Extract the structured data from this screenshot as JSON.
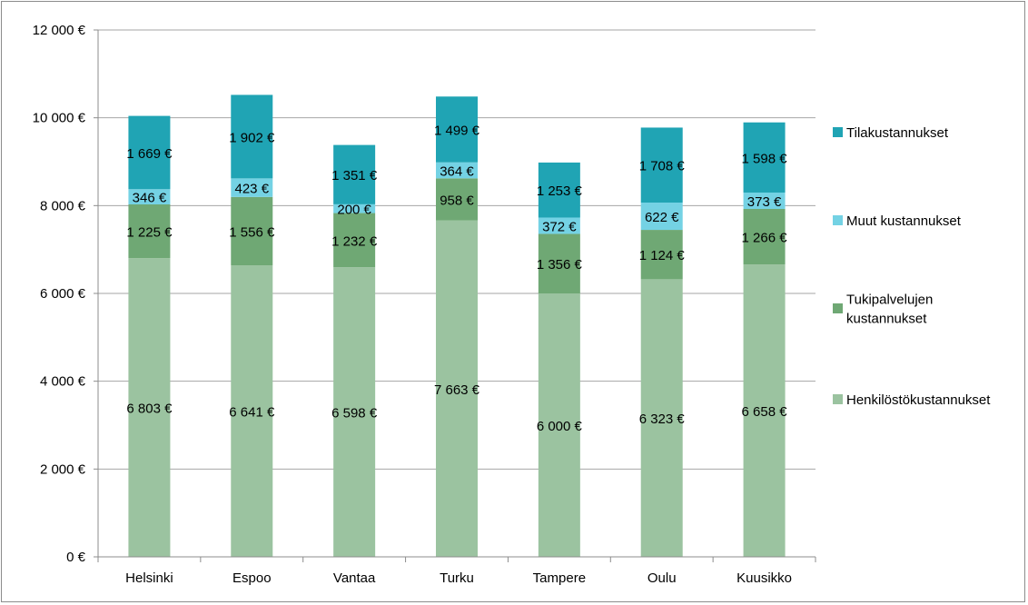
{
  "chart_data": {
    "type": "bar",
    "stacked": true,
    "categories": [
      "Helsinki",
      "Espoo",
      "Vantaa",
      "Turku",
      "Tampere",
      "Oulu",
      "Kuusikko"
    ],
    "series": [
      {
        "name": "Henkilöstökustannukset",
        "color": "#9bc3a0",
        "values": [
          6803,
          6641,
          6598,
          7663,
          6000,
          6323,
          6658
        ],
        "labels": [
          "6 803 €",
          "6 641 €",
          "6 598 €",
          "7 663 €",
          "6 000 €",
          "6 323 €",
          "6 658 €"
        ]
      },
      {
        "name": "Tukipalvelujen kustannukset",
        "color": "#6fa874",
        "values": [
          1225,
          1556,
          1232,
          958,
          1356,
          1124,
          1266
        ],
        "labels": [
          "1 225 €",
          "1 556 €",
          "1 232 €",
          "958 €",
          "1 356 €",
          "1 124 €",
          "1 266 €"
        ]
      },
      {
        "name": "Muut kustannukset",
        "color": "#74d2e4",
        "values": [
          346,
          423,
          200,
          364,
          372,
          622,
          373
        ],
        "labels": [
          "346 €",
          "423 €",
          "200 €",
          "364 €",
          "372 €",
          "622 €",
          "373 €"
        ]
      },
      {
        "name": "Tilakustannukset",
        "color": "#20a4b4",
        "values": [
          1669,
          1902,
          1351,
          1499,
          1253,
          1708,
          1598
        ],
        "labels": [
          "1 669 €",
          "1 902 €",
          "1 351 €",
          "1 499 €",
          "1 253 €",
          "1 708 €",
          "1 598 €"
        ]
      }
    ],
    "ylim": [
      0,
      12000
    ],
    "yticks": [
      0,
      2000,
      4000,
      6000,
      8000,
      10000,
      12000
    ],
    "ytick_labels": [
      "0 €",
      "2 000 €",
      "4 000 €",
      "6 000 €",
      "8 000 €",
      "10 000 €",
      "12 000 €"
    ],
    "grid": true,
    "legend_position": "right",
    "legend_order": [
      "Tilakustannukset",
      "Muut kustannukset",
      "Tukipalvelujen kustannukset",
      "Henkilöstökustannukset"
    ],
    "legend_lines": {
      "Tilakustannukset": [
        "Tilakustannukset"
      ],
      "Muut kustannukset": [
        "Muut kustannukset"
      ],
      "Tukipalvelujen kustannukset": [
        "Tukipalvelujen",
        "kustannukset"
      ],
      "Henkilöstökustannukset": [
        "Henkilöstökustannukset"
      ]
    },
    "title": "",
    "xlabel": "",
    "ylabel": "",
    "grid_color": "#a6a6a6",
    "axis_color": "#8c8c8c"
  }
}
